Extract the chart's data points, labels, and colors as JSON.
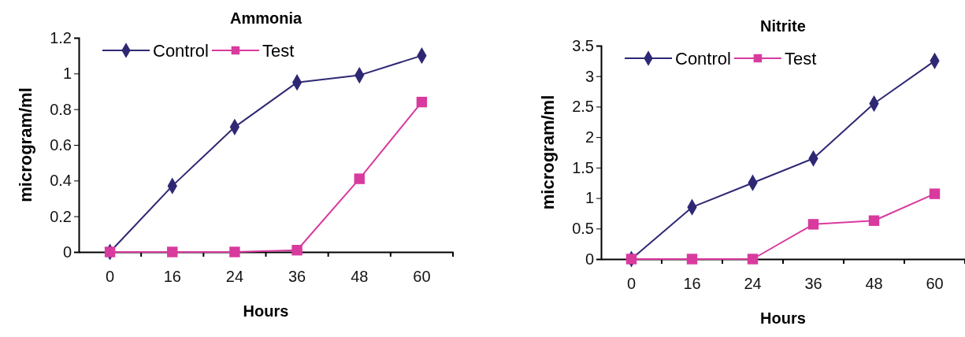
{
  "chart_data": [
    {
      "type": "line",
      "title": "Ammonia",
      "xlabel": "Hours",
      "ylabel": "microgram/ml",
      "categories": [
        "0",
        "16",
        "24",
        "36",
        "48",
        "60"
      ],
      "ylim": [
        0,
        1.2
      ],
      "yticks": [
        0,
        {
          "value": 0.2,
          "label": "0.2"
        },
        {
          "value": 0.4,
          "label": "0.4"
        },
        {
          "value": 0.6,
          "label": "0.6"
        },
        {
          "value": 0.8,
          "label": "0.8"
        },
        1,
        {
          "value": 1.2,
          "label": "1.2"
        }
      ],
      "grid": false,
      "legend": "top left",
      "series": [
        {
          "name": "Control",
          "color": "#2e2874",
          "marker": "diamond",
          "values": [
            0,
            0.37,
            0.7,
            0.95,
            0.99,
            1.1
          ]
        },
        {
          "name": "Test",
          "color": "#d93a9e",
          "marker": "square",
          "values": [
            0,
            0,
            0,
            0.01,
            0.41,
            0.84
          ]
        }
      ]
    },
    {
      "type": "line",
      "title": "Nitrite",
      "xlabel": "Hours",
      "ylabel": "microgram/ml",
      "categories": [
        "0",
        "16",
        "24",
        "36",
        "48",
        "60"
      ],
      "ylim": [
        0,
        3.5
      ],
      "yticks": [
        0,
        {
          "value": 0.5,
          "label": "0.5"
        },
        1,
        {
          "value": 1.5,
          "label": "1.5"
        },
        2,
        {
          "value": 2.5,
          "label": "2.5"
        },
        3,
        {
          "value": 3.5,
          "label": "3.5"
        }
      ],
      "grid": false,
      "legend": "top left",
      "series": [
        {
          "name": "Control",
          "color": "#2e2874",
          "marker": "diamond",
          "values": [
            0,
            0.85,
            1.25,
            1.65,
            2.55,
            3.25
          ]
        },
        {
          "name": "Test",
          "color": "#d93a9e",
          "marker": "square",
          "values": [
            0,
            0,
            0,
            0.57,
            0.63,
            1.07
          ]
        }
      ]
    }
  ]
}
